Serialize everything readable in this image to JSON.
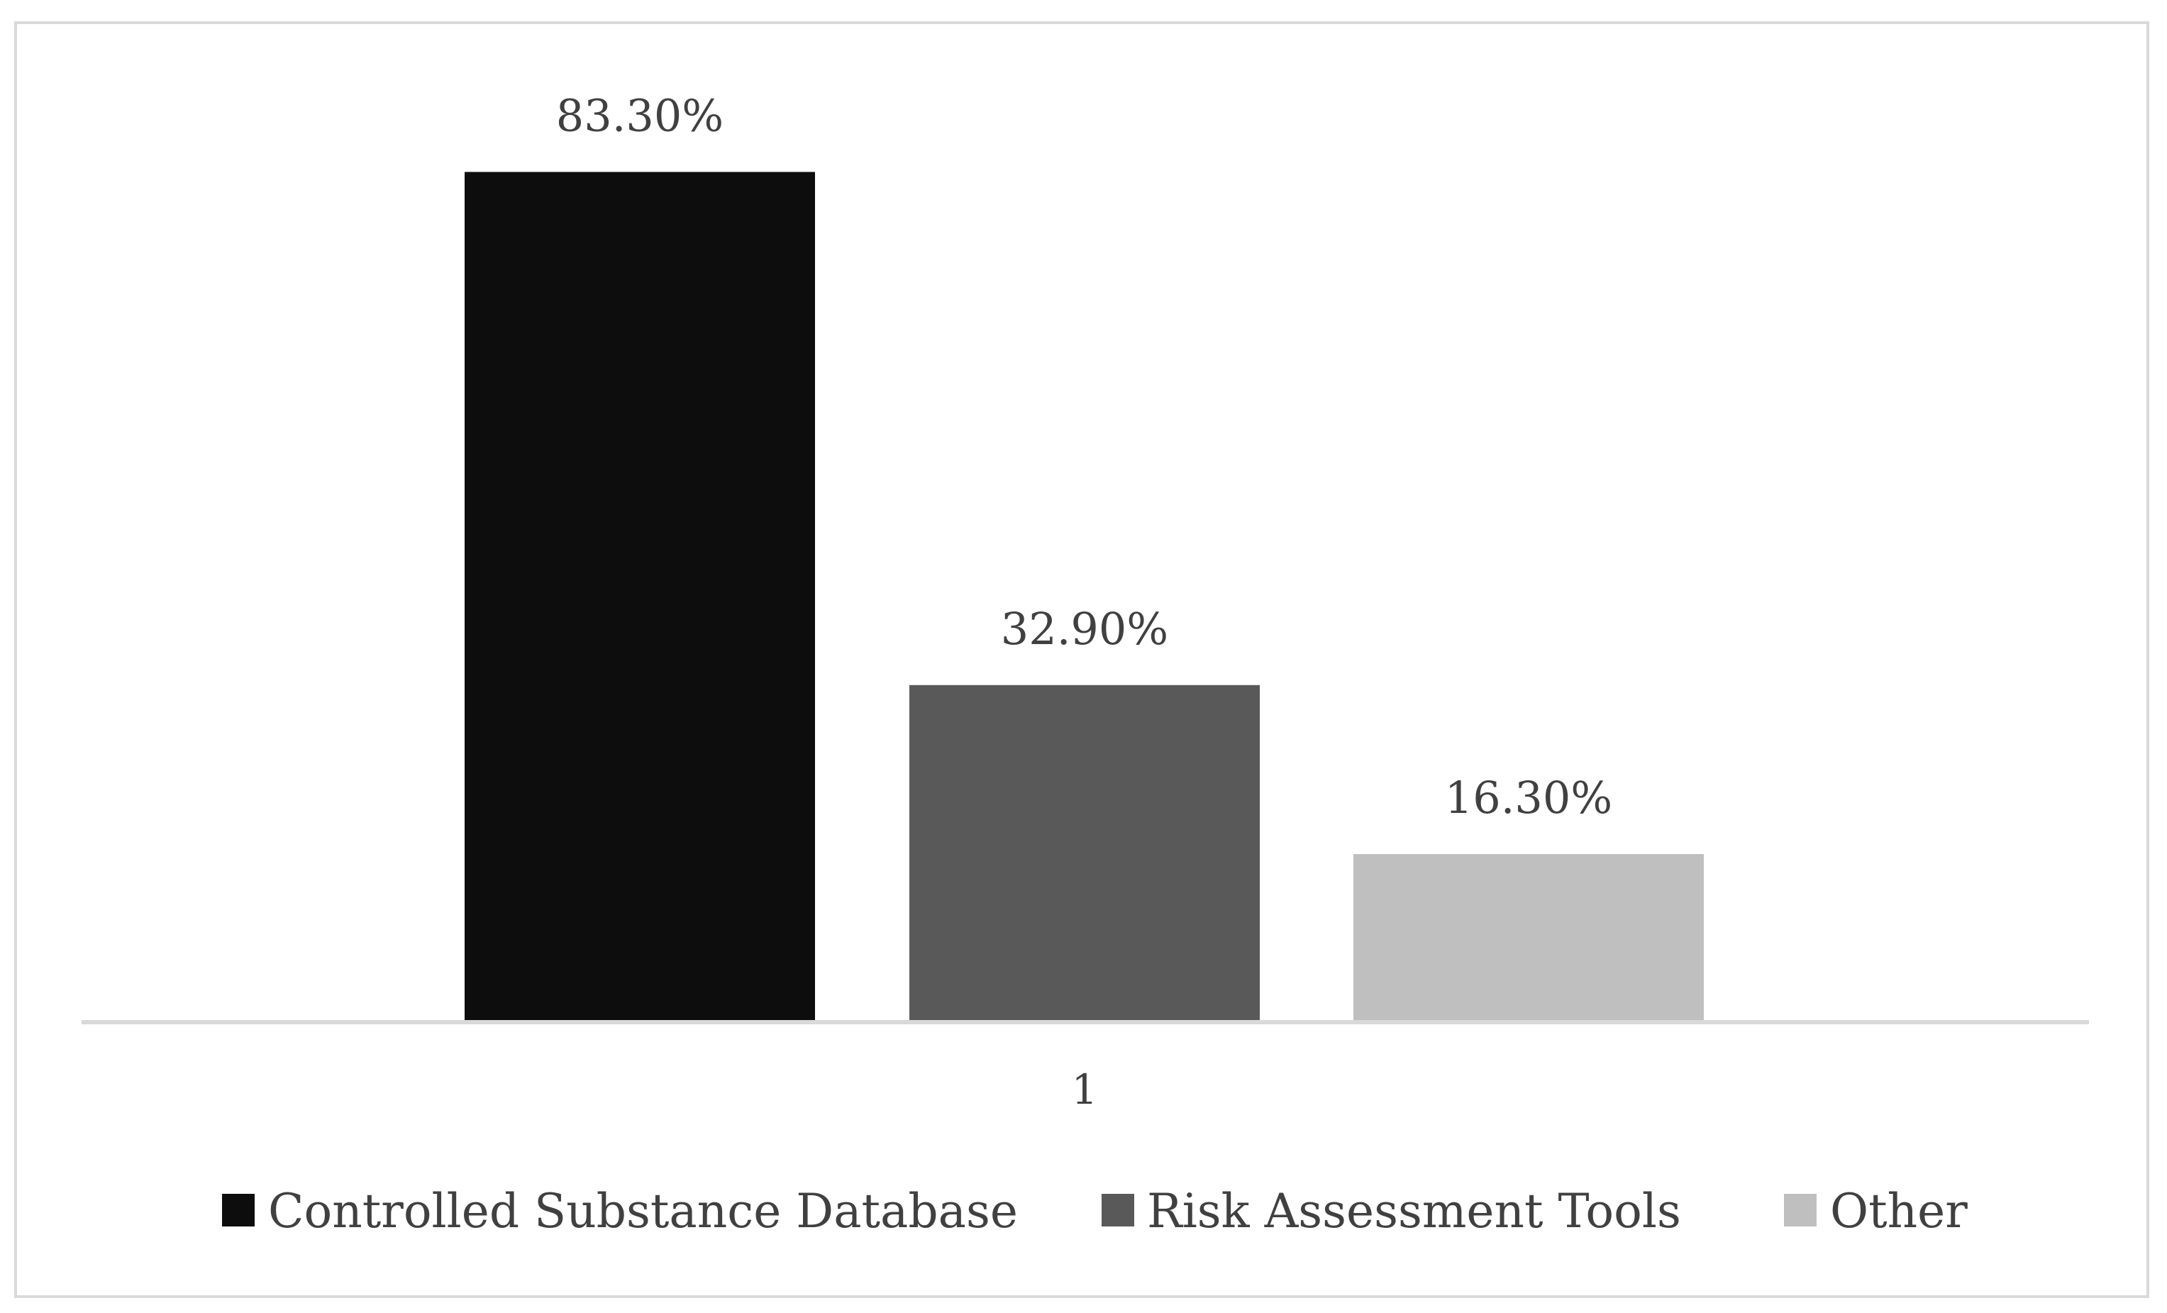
{
  "chart_data": {
    "type": "bar",
    "categories": [
      "1"
    ],
    "series": [
      {
        "name": "Controlled Substance Database",
        "values": [
          83.3
        ],
        "label": "83.30%",
        "color": "#0d0d0d"
      },
      {
        "name": "Risk Assessment Tools",
        "values": [
          32.9
        ],
        "label": "32.90%",
        "color": "#595959"
      },
      {
        "name": "Other",
        "values": [
          16.3
        ],
        "label": "16.30%",
        "color": "#bfbfbf"
      }
    ],
    "ylim": [
      0,
      85
    ],
    "grid": false,
    "legend_position": "bottom",
    "axis_color": "#d9d9d9"
  }
}
